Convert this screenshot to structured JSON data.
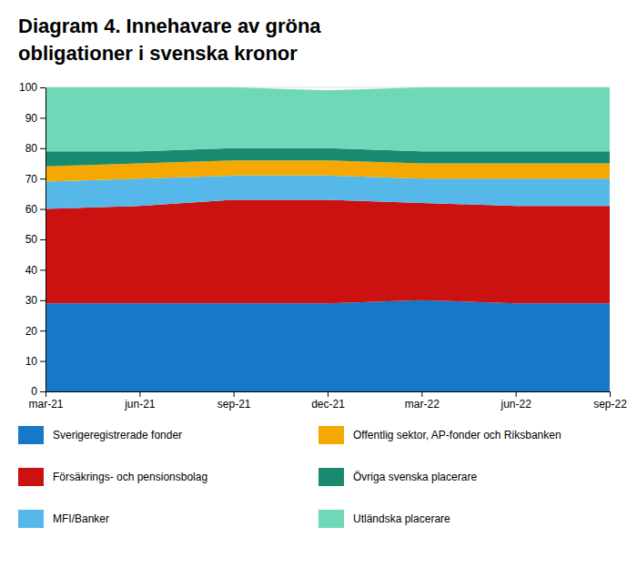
{
  "chart_data": {
    "type": "area",
    "stacked": true,
    "title": "Diagram 4. Innehavare av gröna",
    "subtitle": "obligationer i svenska kronor",
    "categories": [
      "mar-21",
      "jun-21",
      "sep-21",
      "dec-21",
      "mar-22",
      "jun-22",
      "sep-22"
    ],
    "series": [
      {
        "name": "Sverigeregistrerade fonder",
        "color": "#1878c8",
        "values": [
          29,
          29,
          29,
          29,
          30,
          29,
          29
        ]
      },
      {
        "name": "Försäkrings- och pensionsbolag",
        "color": "#cc1111",
        "values": [
          31,
          32,
          34,
          34,
          32,
          32,
          32
        ]
      },
      {
        "name": "MFI/Banker",
        "color": "#56b8e8",
        "values": [
          9,
          9,
          8,
          8,
          8,
          9,
          9
        ]
      },
      {
        "name": "Offentlig sektor, AP-fonder och Riksbanken",
        "color": "#f5a800",
        "values": [
          5,
          5,
          5,
          5,
          5,
          5,
          5
        ]
      },
      {
        "name": "Övriga svenska placerare",
        "color": "#1a8a6e",
        "values": [
          5,
          4,
          4,
          4,
          4,
          4,
          4
        ]
      },
      {
        "name": "Utländska placerare",
        "color": "#6ed8b8",
        "values": [
          21,
          21,
          20,
          19,
          21,
          21,
          21
        ]
      }
    ],
    "ylim": [
      0,
      100
    ],
    "yticks": [
      0,
      10,
      20,
      30,
      40,
      50,
      60,
      70,
      80,
      90,
      100
    ],
    "grid": true,
    "legend": "bottom"
  }
}
